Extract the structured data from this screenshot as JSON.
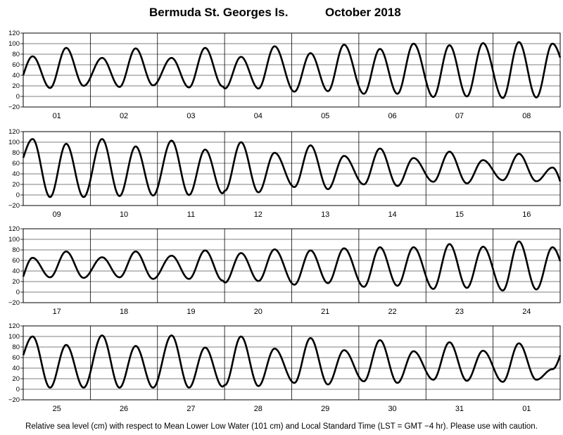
{
  "title": {
    "location": "Bermuda St. Georges Is.",
    "month": "October   2018"
  },
  "footer": "Relative sea level (cm) with respect to Mean Lower Low Water (101 cm) and Local Standard Time (LST = GMT −4 hr). Please use with caution.",
  "colors": {
    "line": "#000000",
    "grid": "#000000",
    "background": "#ffffff"
  },
  "chart_data": [
    {
      "type": "line",
      "title": "",
      "xlabel": "",
      "ylabel": "",
      "ylim": [
        -20,
        120
      ],
      "yticks": [
        -20,
        0,
        20,
        40,
        60,
        80,
        100,
        120
      ],
      "grid": true,
      "categories": [
        "01",
        "02",
        "03",
        "04",
        "05",
        "06",
        "07",
        "08"
      ],
      "series": [
        {
          "values": [
            {
              "day": "01",
              "high": [
                76,
                92
              ],
              "low": [
                16,
                20
              ]
            },
            {
              "day": "02",
              "high": [
                73,
                91
              ],
              "low": [
                18,
                21
              ]
            },
            {
              "day": "03",
              "high": [
                73,
                92
              ],
              "low": [
                17,
                19
              ]
            },
            {
              "day": "04",
              "high": [
                75,
                95
              ],
              "low": [
                15,
                15
              ]
            },
            {
              "day": "05",
              "high": [
                82,
                98
              ],
              "low": [
                10,
                9
              ]
            },
            {
              "day": "06",
              "high": [
                90,
                100
              ],
              "low": [
                5,
                5
              ]
            },
            {
              "day": "07",
              "high": [
                97,
                101
              ],
              "low": [
                0,
                -1
              ]
            },
            {
              "day": "08",
              "high": [
                103,
                100
              ],
              "low": [
                -2,
                -3
              ]
            }
          ]
        }
      ]
    },
    {
      "type": "line",
      "title": "",
      "xlabel": "",
      "ylabel": "",
      "ylim": [
        -20,
        120
      ],
      "yticks": [
        -20,
        0,
        20,
        40,
        60,
        80,
        100,
        120
      ],
      "grid": true,
      "categories": [
        "09",
        "10",
        "11",
        "12",
        "13",
        "14",
        "15",
        "16"
      ],
      "series": [
        {
          "values": [
            {
              "day": "09",
              "high": [
                106,
                97
              ],
              "low": [
                -4,
                -4
              ]
            },
            {
              "day": "10",
              "high": [
                106,
                92
              ],
              "low": [
                -2,
                -1
              ]
            },
            {
              "day": "11",
              "high": [
                103,
                86
              ],
              "low": [
                0,
                3
              ]
            },
            {
              "day": "12",
              "high": [
                100,
                80
              ],
              "low": [
                5,
                8
              ]
            },
            {
              "day": "13",
              "high": [
                94,
                74
              ],
              "low": [
                11,
                15
              ]
            },
            {
              "day": "14",
              "high": [
                88,
                70
              ],
              "low": [
                17,
                20
              ]
            },
            {
              "day": "15",
              "high": [
                82,
                66
              ],
              "low": [
                22,
                25
              ]
            },
            {
              "day": "16",
              "high": [
                78,
                52
              ],
              "low": [
                26,
                28
              ]
            }
          ]
        }
      ]
    },
    {
      "type": "line",
      "title": "",
      "xlabel": "",
      "ylabel": "",
      "ylim": [
        -20,
        120
      ],
      "yticks": [
        -20,
        0,
        20,
        40,
        60,
        80,
        100,
        120
      ],
      "grid": true,
      "categories": [
        "17",
        "18",
        "19",
        "20",
        "21",
        "22",
        "23",
        "24"
      ],
      "series": [
        {
          "values": [
            {
              "day": "17",
              "high": [
                65,
                77
              ],
              "low": [
                28,
                27
              ]
            },
            {
              "day": "18",
              "high": [
                66,
                77
              ],
              "low": [
                28,
                25
              ]
            },
            {
              "day": "19",
              "high": [
                69,
                79
              ],
              "low": [
                25,
                22
              ]
            },
            {
              "day": "20",
              "high": [
                74,
                81
              ],
              "low": [
                21,
                18
              ]
            },
            {
              "day": "21",
              "high": [
                79,
                83
              ],
              "low": [
                17,
                14
              ]
            },
            {
              "day": "22",
              "high": [
                85,
                85
              ],
              "low": [
                12,
                10
              ]
            },
            {
              "day": "23",
              "high": [
                91,
                86
              ],
              "low": [
                8,
                6
              ]
            },
            {
              "day": "24",
              "high": [
                96,
                85
              ],
              "low": [
                5,
                3
              ]
            }
          ]
        }
      ]
    },
    {
      "type": "line",
      "title": "",
      "xlabel": "",
      "ylabel": "",
      "ylim": [
        -20,
        120
      ],
      "yticks": [
        -20,
        0,
        20,
        40,
        60,
        80,
        100,
        120
      ],
      "grid": true,
      "categories": [
        "25",
        "26",
        "27",
        "28",
        "29",
        "30",
        "31",
        "01"
      ],
      "series": [
        {
          "values": [
            {
              "day": "25",
              "high": [
                100,
                84
              ],
              "low": [
                3,
                3
              ]
            },
            {
              "day": "26",
              "high": [
                102,
                82
              ],
              "low": [
                3,
                3
              ]
            },
            {
              "day": "27",
              "high": [
                102,
                79
              ],
              "low": [
                3,
                5
              ]
            },
            {
              "day": "28",
              "high": [
                100,
                77
              ],
              "low": [
                6,
                8
              ]
            },
            {
              "day": "29",
              "high": [
                97,
                74
              ],
              "low": [
                9,
                12
              ]
            },
            {
              "day": "30",
              "high": [
                93,
                72
              ],
              "low": [
                12,
                15
              ]
            },
            {
              "day": "31",
              "high": [
                89,
                73
              ],
              "low": [
                16,
                18
              ]
            },
            {
              "day": "01",
              "high": [
                87,
                38
              ],
              "low": [
                18,
                14
              ]
            }
          ]
        }
      ]
    }
  ]
}
